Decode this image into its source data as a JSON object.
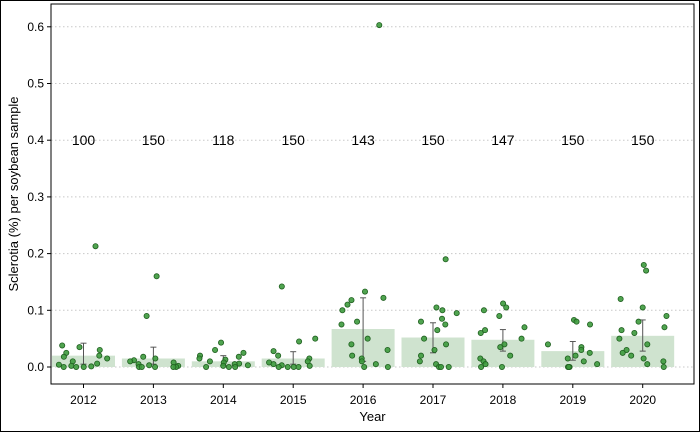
{
  "chart_data": {
    "type": "bar",
    "xlabel": "Year",
    "ylabel": "Sclerotia (%) per soybean sample",
    "ylim": [
      0,
      0.63
    ],
    "yticks": [
      0.0,
      0.1,
      0.2,
      0.3,
      0.4,
      0.5,
      0.6
    ],
    "ytick_labels": [
      "0.0",
      "0.1",
      "0.2",
      "0.3",
      "0.4",
      "0.5",
      "0.6"
    ],
    "grid": "horizontal dotted",
    "colors": {
      "bar": "#cfe3cf",
      "point_fill": "#3d9a3d",
      "point_stroke": "#1f5f1f",
      "errorbar": "#555555"
    },
    "count_label_y": 0.4,
    "categories": [
      "2012",
      "2013",
      "2014",
      "2015",
      "2016",
      "2017",
      "2018",
      "2019",
      "2020"
    ],
    "values": [
      0.02,
      0.015,
      0.01,
      0.015,
      0.067,
      0.052,
      0.048,
      0.028,
      0.055
    ],
    "error_low": [
      0.005,
      0.005,
      0.003,
      0.005,
      0.01,
      0.025,
      0.028,
      0.012,
      0.028
    ],
    "error_high": [
      0.042,
      0.035,
      0.02,
      0.027,
      0.122,
      0.078,
      0.066,
      0.045,
      0.083
    ],
    "counts": [
      "100",
      "150",
      "118",
      "150",
      "143",
      "150",
      "147",
      "150",
      "150"
    ],
    "points": [
      [
        0.213,
        0.038,
        0.035,
        0.03,
        0.025,
        0.02,
        0.018,
        0.015,
        0.01,
        0.006,
        0.004,
        0.002,
        0.001,
        0.0,
        0.0,
        0.0
      ],
      [
        0.16,
        0.09,
        0.018,
        0.015,
        0.012,
        0.01,
        0.008,
        0.005,
        0.003,
        0.002,
        0.0,
        0.0,
        0.0,
        0.0,
        0.0
      ],
      [
        0.043,
        0.03,
        0.025,
        0.02,
        0.018,
        0.015,
        0.013,
        0.01,
        0.008,
        0.006,
        0.005,
        0.003,
        0.002,
        0.0,
        0.0,
        0.0
      ],
      [
        0.142,
        0.05,
        0.045,
        0.028,
        0.02,
        0.015,
        0.01,
        0.008,
        0.005,
        0.003,
        0.002,
        0.0,
        0.0,
        0.0,
        0.0
      ],
      [
        0.603,
        0.133,
        0.122,
        0.118,
        0.11,
        0.1,
        0.08,
        0.075,
        0.05,
        0.04,
        0.03,
        0.02,
        0.015,
        0.01,
        0.005,
        0.0,
        0.0
      ],
      [
        0.19,
        0.105,
        0.1,
        0.095,
        0.085,
        0.08,
        0.075,
        0.065,
        0.05,
        0.04,
        0.03,
        0.02,
        0.01,
        0.005,
        0.0,
        0.0,
        0.0
      ],
      [
        0.112,
        0.105,
        0.1,
        0.09,
        0.07,
        0.065,
        0.06,
        0.05,
        0.04,
        0.035,
        0.02,
        0.015,
        0.01,
        0.005,
        0.0,
        0.0
      ],
      [
        0.083,
        0.08,
        0.075,
        0.04,
        0.035,
        0.03,
        0.025,
        0.02,
        0.015,
        0.01,
        0.005,
        0.0,
        0.0,
        0.0
      ],
      [
        0.18,
        0.17,
        0.12,
        0.105,
        0.09,
        0.08,
        0.07,
        0.065,
        0.06,
        0.05,
        0.04,
        0.03,
        0.025,
        0.02,
        0.015,
        0.01,
        0.005,
        0.0
      ]
    ]
  }
}
